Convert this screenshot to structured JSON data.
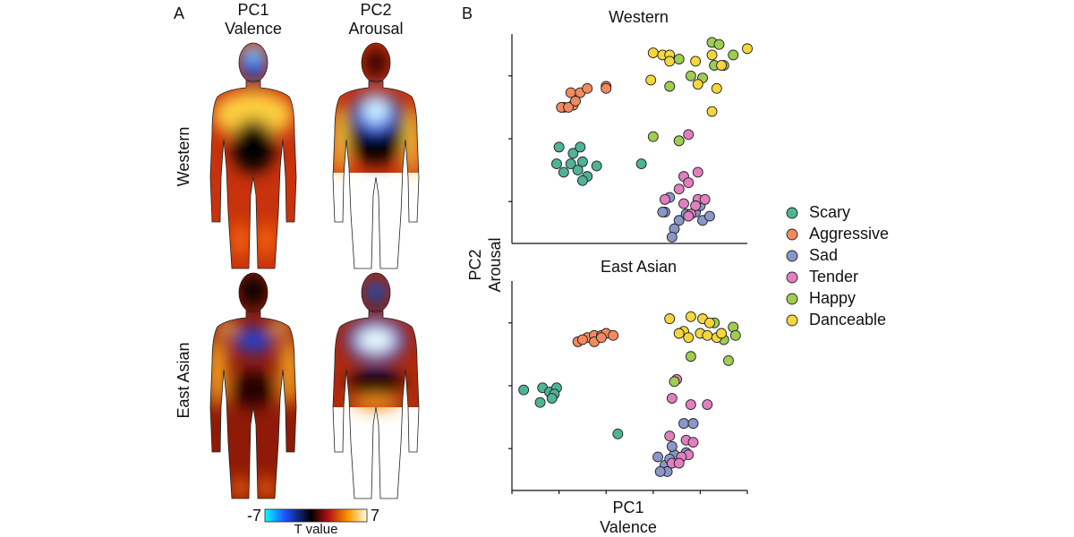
{
  "body_maps": {
    "label": "A",
    "columns": [
      [
        "PC1",
        "Valence"
      ],
      [
        "PC2",
        "Arousal"
      ]
    ],
    "rows": [
      "Western",
      "East Asian"
    ],
    "colorbar": {
      "min": -7,
      "max": 7,
      "label": "T value"
    }
  },
  "panel_b_label": "B",
  "shared_axes": {
    "x_label": [
      "PC1",
      "Valence"
    ],
    "y_label": [
      "PC2",
      "Arousal"
    ]
  },
  "chart_data": [
    {
      "type": "scatter",
      "title": "Western",
      "xlim": [
        0,
        10
      ],
      "ylim": [
        0,
        10
      ],
      "yticks": [
        2,
        5,
        8
      ],
      "series": [
        {
          "name": "Scary",
          "color": "#4fb396",
          "x": [
            2.0,
            2.6,
            2.9,
            1.9,
            2.5,
            3.0,
            3.6,
            2.2,
            2.8,
            3.2,
            3.0,
            5.5
          ],
          "values": [
            4.6,
            4.3,
            4.6,
            3.8,
            3.8,
            3.9,
            3.7,
            3.4,
            3.5,
            3.2,
            3.0,
            3.8
          ]
        },
        {
          "name": "Aggressive",
          "color": "#f28a5e",
          "x": [
            2.5,
            2.9,
            3.2,
            4.0,
            4.0,
            2.2,
            2.6,
            2.1,
            2.4,
            2.7
          ],
          "values": [
            7.2,
            7.2,
            7.4,
            7.5,
            7.4,
            6.5,
            6.6,
            6.5,
            6.5,
            6.8
          ]
        },
        {
          "name": "Sad",
          "color": "#8a97c9",
          "x": [
            6.5,
            7.1,
            6.9,
            7.4,
            7.8,
            8.1,
            8.4,
            6.4,
            6.7,
            8.0,
            6.8
          ],
          "values": [
            1.5,
            1.1,
            0.7,
            1.4,
            1.5,
            1.1,
            1.3,
            1.5,
            2.2,
            1.8,
            0.3
          ]
        },
        {
          "name": "Tender",
          "color": "#e17fc0",
          "x": [
            7.5,
            7.1,
            7.3,
            7.9,
            7.5,
            7.1,
            6.5,
            7.9,
            8.2,
            7.8,
            7.3,
            7.6,
            7.5
          ],
          "values": [
            5.2,
            4.9,
            3.2,
            3.4,
            2.9,
            2.6,
            2.1,
            2.1,
            2.1,
            1.8,
            1.9,
            1.4,
            1.3
          ]
        },
        {
          "name": "Happy",
          "color": "#9fcd52",
          "x": [
            8.5,
            8.8,
            7.1,
            8.6,
            9.4,
            9.0,
            6.7,
            8.1,
            7.6,
            6.0,
            7.1
          ],
          "values": [
            9.6,
            9.5,
            8.8,
            8.5,
            9.0,
            8.5,
            7.5,
            7.9,
            8.0,
            5.1,
            4.9
          ]
        },
        {
          "name": "Danceable",
          "color": "#f5d63c",
          "x": [
            6.0,
            6.4,
            6.7,
            8.5,
            7.8,
            10.0,
            8.9,
            5.9,
            8.7,
            7.9,
            8.5,
            6.7
          ],
          "values": [
            9.1,
            9.0,
            9.0,
            9.0,
            8.7,
            9.3,
            8.5,
            7.8,
            7.4,
            7.6,
            6.3,
            8.7
          ]
        }
      ]
    },
    {
      "type": "scatter",
      "title": "East Asian",
      "xlim": [
        0,
        10
      ],
      "ylim": [
        0,
        10
      ],
      "xticks": [
        0,
        2,
        4,
        6,
        8,
        10
      ],
      "yticks": [
        2,
        5,
        8
      ],
      "series": [
        {
          "x": [
            0.5,
            1.3,
            1.6,
            1.9,
            1.8,
            1.2,
            1.7,
            4.5
          ],
          "values": [
            4.8,
            4.9,
            4.7,
            4.9,
            4.6,
            4.2,
            4.4,
            2.7
          ]
        },
        {
          "x": [
            2.8,
            3.2,
            3.5,
            3.8,
            4.0,
            4.3,
            3.0,
            3.5,
            3.8
          ],
          "values": [
            7.1,
            7.3,
            7.4,
            7.4,
            7.5,
            7.4,
            7.2,
            7.1,
            7.3
          ]
        },
        {
          "x": [
            6.2,
            6.5,
            6.9,
            6.6,
            6.8,
            7.3,
            7.7,
            7.4,
            6.3,
            6.7
          ],
          "values": [
            1.6,
            1.2,
            1.7,
            0.9,
            2.1,
            3.2,
            3.2,
            1.8,
            0.9,
            1.5
          ]
        },
        {
          "x": [
            7.0,
            6.8,
            7.6,
            8.3,
            6.7,
            7.4,
            7.7,
            7.5,
            7.2,
            6.8,
            7.1
          ],
          "values": [
            5.3,
            4.4,
            4.1,
            4.1,
            2.6,
            2.4,
            2.3,
            1.7,
            1.6,
            1.3,
            1.3
          ]
        },
        {
          "x": [
            8.6,
            9.4,
            9.5,
            9.0,
            7.6,
            9.2,
            6.9
          ],
          "values": [
            8.0,
            7.8,
            7.4,
            7.2,
            6.4,
            6.2,
            5.2
          ]
        },
        {
          "x": [
            6.7,
            7.6,
            8.1,
            7.3,
            7.1,
            8.0,
            8.3,
            8.7,
            8.9,
            7.5,
            8.4
          ],
          "values": [
            8.2,
            8.3,
            8.2,
            7.6,
            7.5,
            7.5,
            7.4,
            7.3,
            7.5,
            7.3,
            8.0
          ]
        }
      ]
    }
  ]
}
